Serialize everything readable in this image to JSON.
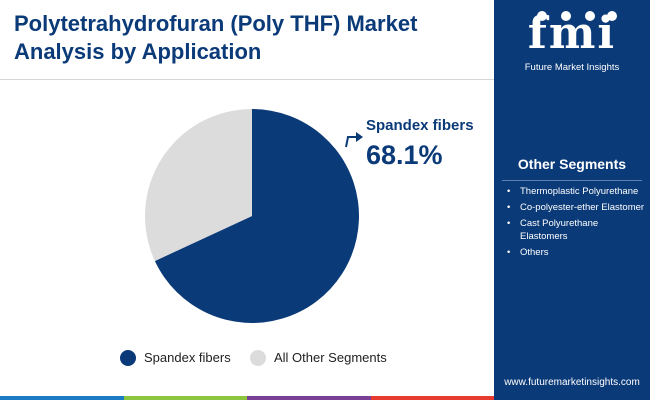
{
  "header": {
    "title_line1": "Polytetrahydrofuran (Poly THF) Market",
    "title_line2": "Analysis by Application"
  },
  "logo": {
    "letters": "fmi",
    "subtitle": "Future Market Insights"
  },
  "sidebar": {
    "heading": "Other Segments",
    "items": [
      "Thermoplastic Polyurethane",
      "Co-polyester-ether Elastomer",
      "Cast Polyurethane Elastomers",
      "Others"
    ],
    "url": "www.futuremarketinsights.com"
  },
  "callout": {
    "label": "Spandex fibers",
    "value": "68.1%"
  },
  "chart_data": {
    "type": "pie",
    "slices": [
      {
        "label": "Spandex fibers",
        "value": 68.1,
        "color": "#0b3a78"
      },
      {
        "label": "All Other Segments",
        "value": 31.9,
        "color": "#dcdcdc"
      }
    ],
    "legend": {
      "position": "bottom"
    }
  },
  "colors": {
    "brand": "#0b3a78",
    "other": "#dcdcdc",
    "bottom_bar": [
      "#1b7cc4",
      "#8cc63f",
      "#7b3f98",
      "#e63b2e"
    ]
  }
}
